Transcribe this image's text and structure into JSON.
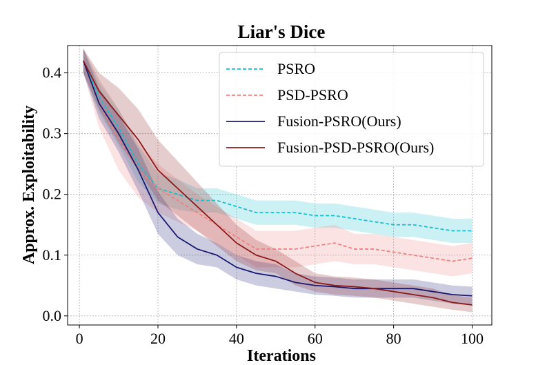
{
  "chart_data": {
    "type": "line",
    "title": "Liar's Dice",
    "xlabel": "Iterations",
    "ylabel": "Approx. Exploitability",
    "xlim": [
      -3,
      105
    ],
    "ylim": [
      -0.015,
      0.445
    ],
    "xticks": [
      0,
      20,
      40,
      60,
      80,
      100
    ],
    "xtick_labels": [
      "0",
      "20",
      "40",
      "60",
      "80",
      "100"
    ],
    "yticks": [
      0.0,
      0.1,
      0.2,
      0.3,
      0.4
    ],
    "ytick_labels": [
      "0.0",
      "0.1",
      "0.2",
      "0.3",
      "0.4"
    ],
    "grid": true,
    "legend_position": "top-right",
    "x": [
      1,
      5,
      10,
      15,
      20,
      25,
      30,
      35,
      40,
      45,
      50,
      55,
      60,
      65,
      70,
      75,
      80,
      85,
      90,
      95,
      100
    ],
    "series": [
      {
        "name": "PSRO",
        "color": "#17becf",
        "dash": "dashed",
        "values": [
          0.42,
          0.36,
          0.31,
          0.25,
          0.21,
          0.2,
          0.19,
          0.19,
          0.18,
          0.17,
          0.17,
          0.17,
          0.165,
          0.165,
          0.16,
          0.155,
          0.15,
          0.15,
          0.145,
          0.14,
          0.14
        ],
        "band": [
          0.02,
          0.025,
          0.03,
          0.03,
          0.025,
          0.025,
          0.02,
          0.02,
          0.02,
          0.02,
          0.02,
          0.02,
          0.02,
          0.02,
          0.02,
          0.02,
          0.02,
          0.02,
          0.02,
          0.02,
          0.02
        ]
      },
      {
        "name": "PSD-PSRO",
        "color": "#f08080",
        "dash": "dashed",
        "values": [
          0.42,
          0.35,
          0.29,
          0.24,
          0.21,
          0.19,
          0.17,
          0.15,
          0.13,
          0.11,
          0.11,
          0.11,
          0.115,
          0.12,
          0.11,
          0.11,
          0.105,
          0.1,
          0.095,
          0.09,
          0.095
        ],
        "band": [
          0.02,
          0.04,
          0.05,
          0.045,
          0.04,
          0.035,
          0.03,
          0.03,
          0.03,
          0.03,
          0.03,
          0.03,
          0.03,
          0.03,
          0.025,
          0.025,
          0.025,
          0.025,
          0.025,
          0.025,
          0.025
        ]
      },
      {
        "name": "Fusion-PSRO(Ours)",
        "color": "#191970",
        "dash": "solid",
        "values": [
          0.42,
          0.35,
          0.3,
          0.24,
          0.17,
          0.13,
          0.11,
          0.1,
          0.08,
          0.07,
          0.065,
          0.055,
          0.05,
          0.048,
          0.045,
          0.045,
          0.045,
          0.045,
          0.04,
          0.035,
          0.033
        ],
        "band": [
          0.02,
          0.025,
          0.03,
          0.035,
          0.035,
          0.03,
          0.025,
          0.02,
          0.02,
          0.02,
          0.02,
          0.015,
          0.015,
          0.015,
          0.015,
          0.015,
          0.015,
          0.015,
          0.015,
          0.015,
          0.015
        ]
      },
      {
        "name": "Fusion-PSD-PSRO(Ours)",
        "color": "#8b1a1a",
        "dash": "solid",
        "values": [
          0.42,
          0.37,
          0.33,
          0.29,
          0.24,
          0.21,
          0.18,
          0.15,
          0.12,
          0.1,
          0.09,
          0.07,
          0.055,
          0.05,
          0.048,
          0.045,
          0.04,
          0.035,
          0.03,
          0.022,
          0.018
        ],
        "band": [
          0.02,
          0.03,
          0.045,
          0.05,
          0.05,
          0.045,
          0.04,
          0.035,
          0.03,
          0.025,
          0.02,
          0.02,
          0.015,
          0.015,
          0.015,
          0.015,
          0.015,
          0.015,
          0.015,
          0.012,
          0.012
        ]
      }
    ]
  }
}
